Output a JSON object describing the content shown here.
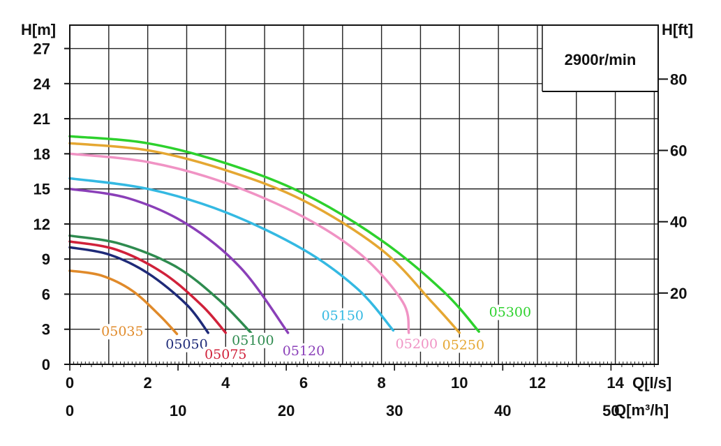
{
  "chart_data": {
    "type": "line",
    "speed_label": "2900r/min",
    "left_axis": {
      "label": "H[m]",
      "range": [
        0,
        29
      ],
      "ticks": [
        "0",
        "3",
        "6",
        "9",
        "12",
        "15",
        "18",
        "21",
        "24",
        "27"
      ]
    },
    "right_axis": {
      "label": "H[ft]",
      "range_ft": [
        0,
        95.14
      ],
      "ticks": [
        "20",
        "40",
        "60",
        "80"
      ]
    },
    "bottom_axis_ls": {
      "label": "Q[l/s]",
      "range": [
        0,
        15.1
      ],
      "ticks": [
        "0",
        "2",
        "4",
        "6",
        "8",
        "10",
        "12",
        "14"
      ]
    },
    "bottom_axis_m3h": {
      "label": "Q[m³/h]",
      "ticks": [
        "0",
        "10",
        "20",
        "30",
        "40",
        "50"
      ]
    },
    "grid": true,
    "series": [
      {
        "name": "05035",
        "color": "#e08a2a",
        "points": [
          [
            0,
            8.0
          ],
          [
            0.8,
            7.6
          ],
          [
            1.6,
            6.3
          ],
          [
            2.3,
            4.2
          ],
          [
            2.75,
            2.6
          ]
        ]
      },
      {
        "name": "05050",
        "color": "#1e2a78",
        "points": [
          [
            0,
            10.0
          ],
          [
            1.0,
            9.4
          ],
          [
            2.0,
            7.8
          ],
          [
            3.0,
            5.1
          ],
          [
            3.55,
            2.7
          ]
        ]
      },
      {
        "name": "05075",
        "color": "#d0213a",
        "points": [
          [
            0,
            10.5
          ],
          [
            1.2,
            9.8
          ],
          [
            2.4,
            7.8
          ],
          [
            3.4,
            5.0
          ],
          [
            4.0,
            2.7
          ]
        ]
      },
      {
        "name": "05100",
        "color": "#2e8b4f",
        "points": [
          [
            0,
            11.0
          ],
          [
            1.3,
            10.3
          ],
          [
            2.7,
            8.4
          ],
          [
            3.8,
            5.6
          ],
          [
            4.65,
            2.7
          ]
        ]
      },
      {
        "name": "05120",
        "color": "#8a3fb8",
        "points": [
          [
            0,
            15.0
          ],
          [
            1.5,
            14.2
          ],
          [
            3.0,
            12.0
          ],
          [
            4.4,
            8.2
          ],
          [
            5.6,
            2.7
          ]
        ]
      },
      {
        "name": "05150",
        "color": "#34b9e2",
        "points": [
          [
            0,
            15.9
          ],
          [
            2.0,
            15.0
          ],
          [
            4.0,
            13.0
          ],
          [
            6.0,
            9.8
          ],
          [
            7.4,
            6.4
          ],
          [
            8.3,
            2.9
          ]
        ]
      },
      {
        "name": "05200",
        "color": "#f093c4",
        "points": [
          [
            0,
            18.0
          ],
          [
            2.0,
            17.3
          ],
          [
            4.0,
            15.5
          ],
          [
            6.0,
            12.6
          ],
          [
            7.5,
            9.3
          ],
          [
            8.55,
            5.3
          ],
          [
            8.7,
            2.7
          ]
        ]
      },
      {
        "name": "05250",
        "color": "#e5a732",
        "points": [
          [
            0,
            18.9
          ],
          [
            2.0,
            18.3
          ],
          [
            4.0,
            16.6
          ],
          [
            6.0,
            14.0
          ],
          [
            8.0,
            9.8
          ],
          [
            9.3,
            5.3
          ],
          [
            10.0,
            2.7
          ]
        ]
      },
      {
        "name": "05300",
        "color": "#2dd12d",
        "points": [
          [
            0,
            19.5
          ],
          [
            2.0,
            18.9
          ],
          [
            4.0,
            17.2
          ],
          [
            6.0,
            14.6
          ],
          [
            8.0,
            10.6
          ],
          [
            9.6,
            6.2
          ],
          [
            10.5,
            2.8
          ]
        ]
      }
    ],
    "labels": [
      {
        "series": "05035",
        "text": "05035",
        "q": 1.35,
        "h": 2.85
      },
      {
        "series": "05050",
        "text": "05050",
        "q": 3.0,
        "h": 1.75
      },
      {
        "series": "05075",
        "text": "05075",
        "q": 4.0,
        "h": 0.9
      },
      {
        "series": "05100",
        "text": "05100",
        "q": 4.7,
        "h": 2.1
      },
      {
        "series": "05120",
        "text": "05120",
        "q": 6.0,
        "h": 1.2
      },
      {
        "series": "05150",
        "text": "05150",
        "q": 7.0,
        "h": 4.2
      },
      {
        "series": "05200",
        "text": "05200",
        "q": 8.9,
        "h": 1.8
      },
      {
        "series": "05250",
        "text": "05250",
        "q": 10.1,
        "h": 1.7
      },
      {
        "series": "05300",
        "text": "05300",
        "q": 11.3,
        "h": 4.5
      }
    ]
  }
}
